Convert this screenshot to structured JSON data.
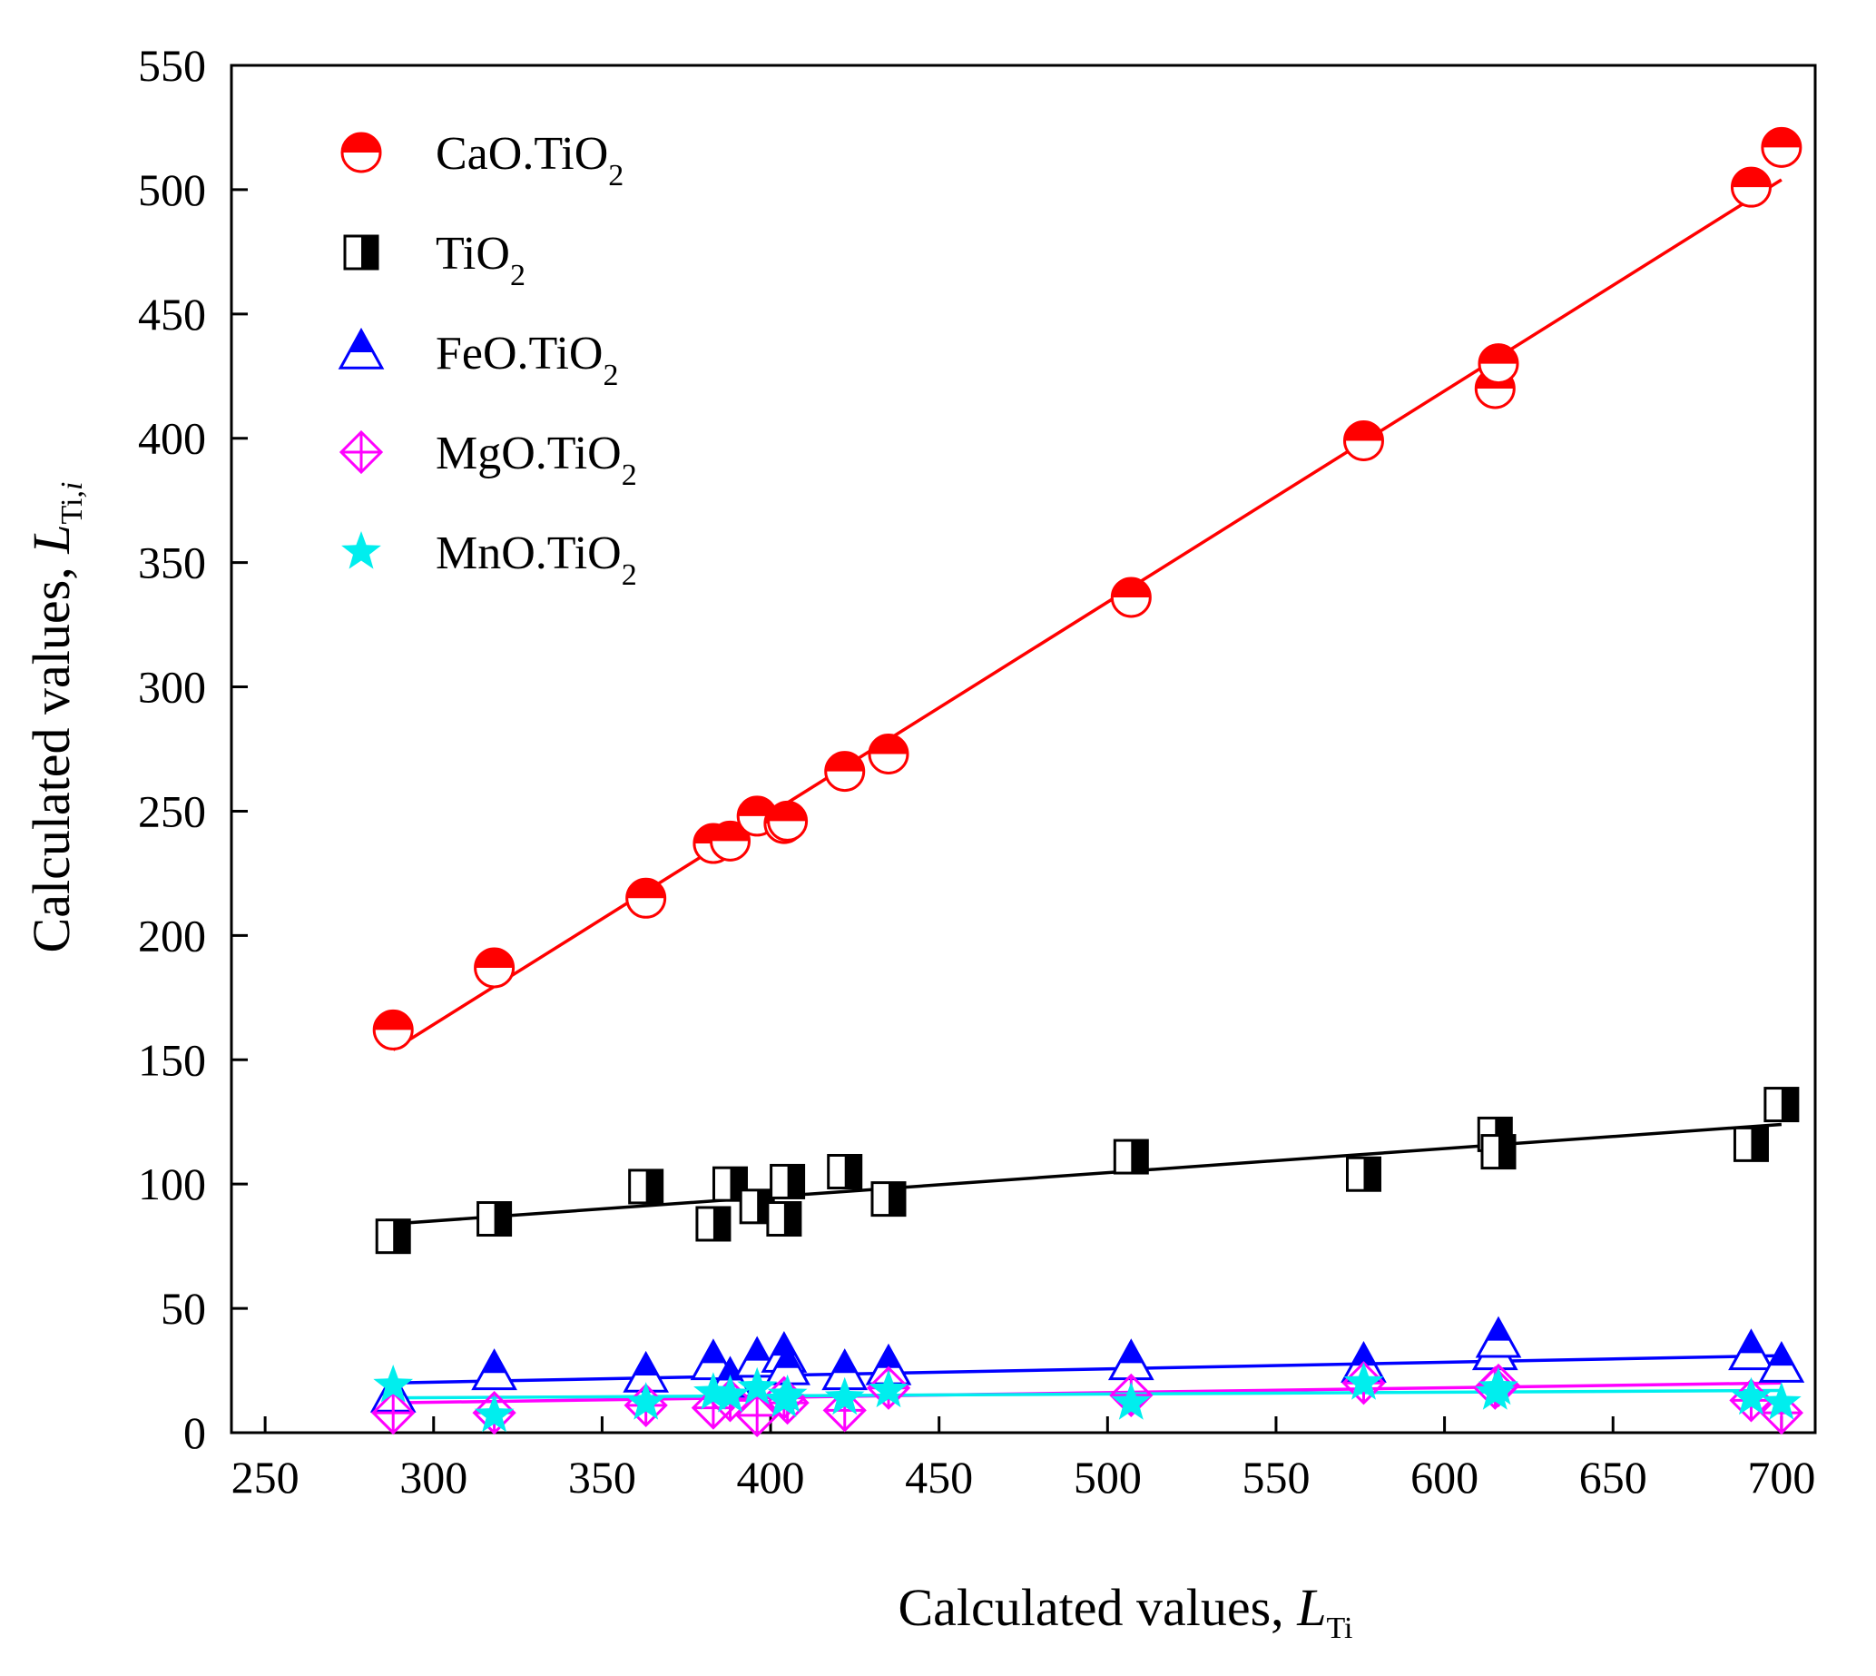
{
  "chart_data": {
    "type": "scatter",
    "title": "",
    "xlabel": "Calculated values, ",
    "xlabel_var": "L",
    "xlabel_sub": "Ti",
    "ylabel": "Calculated values, ",
    "ylabel_var": "L",
    "ylabel_sub": "Ti,",
    "ylabel_sub_italic": "i",
    "xlim": [
      240,
      710
    ],
    "ylim": [
      0,
      550
    ],
    "xticks": [
      250,
      300,
      350,
      400,
      450,
      500,
      550,
      600,
      650,
      700
    ],
    "yticks": [
      0,
      50,
      100,
      150,
      200,
      250,
      300,
      350,
      400,
      450,
      500,
      550
    ],
    "grid": false,
    "legend_position": "top-left",
    "series": [
      {
        "name": "CaO.TiO",
        "name_sub": "2",
        "marker": "circle-half",
        "color": "#ff0000",
        "x": [
          288,
          318,
          363,
          383,
          388,
          396,
          404,
          405,
          422,
          435,
          507,
          576,
          615,
          616,
          691,
          700
        ],
        "y": [
          162,
          187,
          215,
          237,
          238,
          248,
          245,
          246,
          266,
          273,
          336,
          399,
          420,
          430,
          501,
          517
        ],
        "fit": [
          [
            288,
            154
          ],
          [
            700,
            504
          ]
        ]
      },
      {
        "name": "TiO",
        "name_sub": "2",
        "marker": "square-half",
        "color": "#000000",
        "x": [
          288,
          318,
          363,
          383,
          388,
          396,
          404,
          405,
          422,
          435,
          507,
          576,
          615,
          616,
          691,
          700
        ],
        "y": [
          79,
          86,
          99,
          84,
          100,
          91,
          86,
          101,
          105,
          94,
          111,
          104,
          120,
          113,
          116,
          132
        ],
        "fit": [
          [
            288,
            84
          ],
          [
            700,
            124
          ]
        ]
      },
      {
        "name": "FeO.TiO",
        "name_sub": "2",
        "marker": "triangle-half",
        "color": "#0000ff",
        "x": [
          288,
          318,
          363,
          383,
          388,
          396,
          404,
          405,
          422,
          435,
          507,
          576,
          615,
          616,
          691,
          700
        ],
        "y": [
          15,
          24,
          23,
          28,
          21,
          29,
          31,
          26,
          24,
          26,
          28,
          27,
          32,
          37,
          32,
          27
        ],
        "fit": [
          [
            288,
            20
          ],
          [
            700,
            31
          ]
        ]
      },
      {
        "name": "MgO.TiO",
        "name_sub": "2",
        "marker": "diamond-cross",
        "color": "#ff00ff",
        "x": [
          288,
          318,
          363,
          383,
          388,
          396,
          404,
          405,
          422,
          435,
          507,
          576,
          615,
          616,
          691,
          700
        ],
        "y": [
          8,
          8,
          11,
          10,
          13,
          7,
          14,
          12,
          9,
          18,
          15,
          20,
          18,
          19,
          13,
          8
        ],
        "fit": [
          [
            288,
            12
          ],
          [
            700,
            20
          ]
        ]
      },
      {
        "name": "MnO.TiO",
        "name_sub": "2",
        "marker": "star",
        "color": "#00eeee",
        "x": [
          288,
          318,
          363,
          383,
          388,
          396,
          404,
          405,
          422,
          435,
          507,
          576,
          615,
          616,
          691,
          700
        ],
        "y": [
          19,
          7,
          12,
          16,
          15,
          18,
          13,
          15,
          14,
          17,
          12,
          20,
          16,
          18,
          14,
          12
        ],
        "fit": [
          [
            288,
            14
          ],
          [
            700,
            17
          ]
        ]
      }
    ]
  }
}
